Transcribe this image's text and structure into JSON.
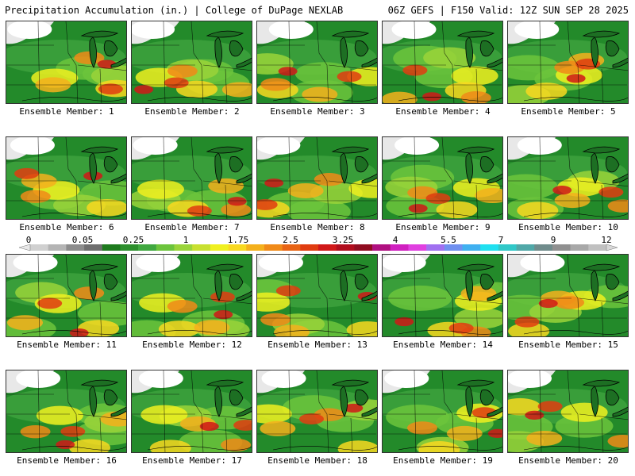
{
  "header": {
    "left": "Precipitation Accumulation (in.) | College of DuPage NEXLAB",
    "right": "06Z GEFS | F150 Valid: 12Z SUN SEP 28 2025"
  },
  "colorbar": {
    "labels": [
      "0",
      "0.05",
      "0.25",
      "1",
      "1.75",
      "2.5",
      "3.25",
      "4",
      "5.5",
      "7",
      "9",
      "12"
    ],
    "colors": [
      "#d0d0d0",
      "#b4b4b4",
      "#8c8c8c",
      "#6e6e6e",
      "#1e7a1e",
      "#2d8f2d",
      "#40a840",
      "#6cc43c",
      "#9ad43a",
      "#c8e030",
      "#f0f020",
      "#f8d820",
      "#f4b01c",
      "#f08a18",
      "#e86414",
      "#e03c10",
      "#d01818",
      "#b00c1c",
      "#900c20",
      "#b01080",
      "#d020c0",
      "#e040e0",
      "#a070f0",
      "#7090f0",
      "#40b0f0",
      "#20e0f0",
      "#30c8c8",
      "#50a8a8",
      "#708c8c",
      "#909090",
      "#a8a8a8",
      "#c0c0c0"
    ]
  },
  "members": [
    {
      "label": "Ensemble Member: 1"
    },
    {
      "label": "Ensemble Member: 2"
    },
    {
      "label": "Ensemble Member: 3"
    },
    {
      "label": "Ensemble Member: 4"
    },
    {
      "label": "Ensemble Member: 5"
    },
    {
      "label": "Ensemble Member: 6"
    },
    {
      "label": "Ensemble Member: 7"
    },
    {
      "label": "Ensemble Member: 8"
    },
    {
      "label": "Ensemble Member: 9"
    },
    {
      "label": "Ensemble Member: 10"
    },
    {
      "label": "Ensemble Member: 11"
    },
    {
      "label": "Ensemble Member: 12"
    },
    {
      "label": "Ensemble Member: 13"
    },
    {
      "label": "Ensemble Member: 14"
    },
    {
      "label": "Ensemble Member: 15"
    },
    {
      "label": "Ensemble Member: 16"
    },
    {
      "label": "Ensemble Member: 17"
    },
    {
      "label": "Ensemble Member: 18"
    },
    {
      "label": "Ensemble Member: 19"
    },
    {
      "label": "Ensemble Member: 20"
    }
  ]
}
